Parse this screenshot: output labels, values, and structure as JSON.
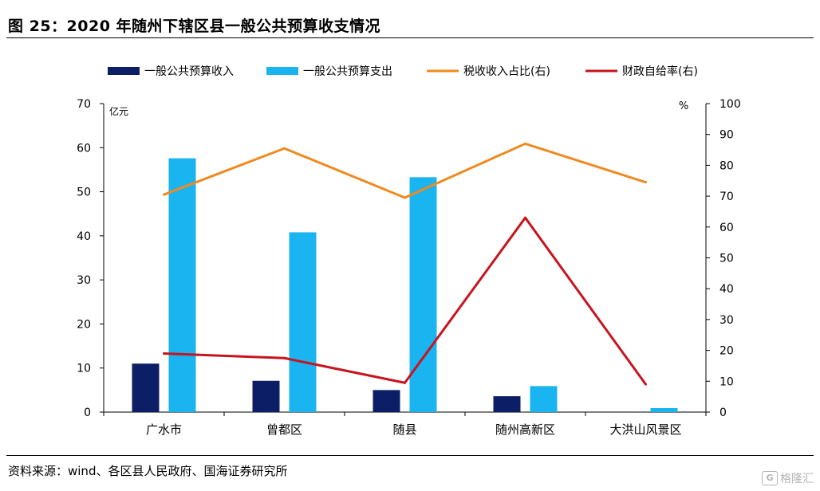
{
  "title": "图 25：2020 年随州下辖区县一般公共预算收支情况",
  "source": "资料来源：wind、各区县人民政府、国海证券研究所",
  "watermark": "格隆汇",
  "chart_data": {
    "type": "bar",
    "categories": [
      "广水市",
      "曾都区",
      "随县",
      "随州高新区",
      "大洪山风景区"
    ],
    "left_axis_unit": "亿元",
    "right_axis_unit": "%",
    "ylim_left": [
      0,
      70
    ],
    "yticks_left": [
      0,
      10,
      20,
      30,
      40,
      50,
      60,
      70
    ],
    "ylim_right": [
      0,
      100
    ],
    "yticks_right": [
      0,
      10,
      20,
      30,
      40,
      50,
      60,
      70,
      80,
      90,
      100
    ],
    "legend_position": "top",
    "series": [
      {
        "name": "一般公共预算收入",
        "kind": "bar",
        "axis": "left",
        "color": "#0c1f66",
        "values": [
          11.0,
          7.1,
          5.0,
          3.6,
          null
        ]
      },
      {
        "name": "一般公共预算支出",
        "kind": "bar",
        "axis": "left",
        "color": "#1ab4f0",
        "values": [
          57.6,
          40.8,
          53.3,
          5.9,
          0.9
        ]
      },
      {
        "name": "税收收入占比(右)",
        "kind": "line",
        "axis": "right",
        "color": "#f08a1e",
        "values": [
          70.5,
          85.5,
          69.5,
          87.0,
          74.5
        ]
      },
      {
        "name": "财政自给率(右)",
        "kind": "line",
        "axis": "right",
        "color": "#c8141e",
        "values": [
          19.0,
          17.5,
          9.5,
          63.0,
          9.0
        ]
      }
    ]
  }
}
